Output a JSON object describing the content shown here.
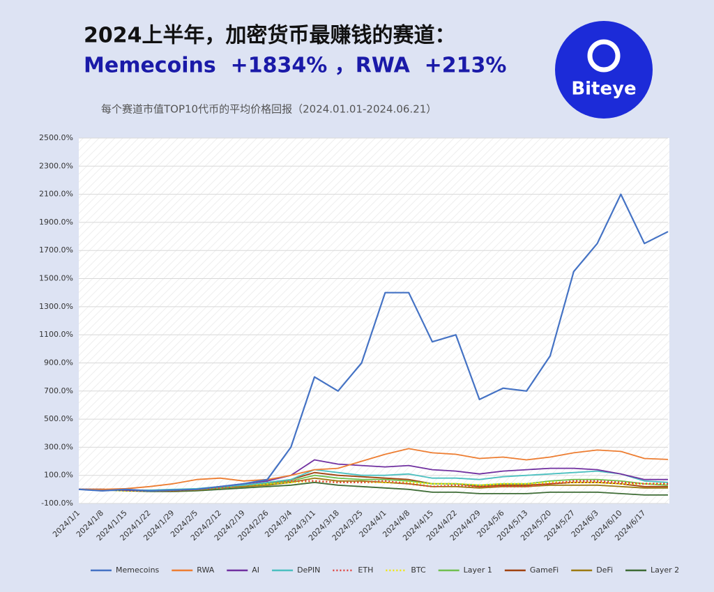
{
  "brand": "Biteye",
  "chart_data": {
    "type": "line",
    "title": "2024上半年，加密货币最赚钱的赛道：",
    "subtitle": "Memecoins  +1834% ，RWA  +213%",
    "note": "每个赛道市值TOP10代币的平均价格回报（2024.01.01-2024.06.21）",
    "categories": [
      "2024/1/1",
      "2024/1/8",
      "2024/1/15",
      "2024/1/22",
      "2024/1/29",
      "2024/2/5",
      "2024/2/12",
      "2024/2/19",
      "2024/2/26",
      "2024/3/4",
      "2024/3/11",
      "2024/3/18",
      "2024/3/25",
      "2024/4/1",
      "2024/4/8",
      "2024/4/15",
      "2024/4/22",
      "2024/4/29",
      "2024/5/6",
      "2024/5/13",
      "2024/5/20",
      "2024/5/27",
      "2024/6/3",
      "2024/6/10",
      "2024/6/17",
      null
    ],
    "ylim": [
      -100,
      2500
    ],
    "yticks": [
      {
        "value": -100,
        "label": "-100.0%"
      },
      {
        "value": 100,
        "label": "100.0%"
      },
      {
        "value": 300,
        "label": "300.0%"
      },
      {
        "value": 500,
        "label": "500.0%"
      },
      {
        "value": 700,
        "label": "700.0%"
      },
      {
        "value": 900,
        "label": "900.0%"
      },
      {
        "value": 1100,
        "label": "1100.0%"
      },
      {
        "value": 1300,
        "label": "1300.0%"
      },
      {
        "value": 1500,
        "label": "1500.0%"
      },
      {
        "value": 1700,
        "label": "1700.0%"
      },
      {
        "value": 1900,
        "label": "1900.0%"
      },
      {
        "value": 2100,
        "label": "2100.0%"
      },
      {
        "value": 2300,
        "label": "2300.0%"
      },
      {
        "value": 2500,
        "label": "2500.0%"
      }
    ],
    "grid": true,
    "legend": "bottom",
    "series": [
      {
        "name": "Memecoins",
        "color": "#4472c4",
        "values": [
          0,
          -10,
          0,
          -10,
          -5,
          0,
          20,
          40,
          70,
          300,
          800,
          700,
          900,
          1400,
          1400,
          1050,
          1100,
          640,
          720,
          700,
          950,
          1550,
          1750,
          2100,
          1750,
          1834
        ]
      },
      {
        "name": "RWA",
        "color": "#ed7d31",
        "values": [
          0,
          0,
          5,
          20,
          40,
          70,
          80,
          60,
          70,
          100,
          140,
          150,
          200,
          250,
          290,
          260,
          250,
          220,
          230,
          210,
          230,
          260,
          280,
          270,
          220,
          213
        ]
      },
      {
        "name": "AI",
        "color": "#7030a0",
        "values": [
          0,
          0,
          -5,
          -10,
          -5,
          0,
          20,
          40,
          60,
          100,
          210,
          180,
          170,
          160,
          170,
          140,
          130,
          110,
          130,
          140,
          150,
          150,
          140,
          110,
          70,
          70
        ]
      },
      {
        "name": "DePIN",
        "color": "#4bc0c0",
        "values": [
          0,
          0,
          -5,
          -5,
          0,
          5,
          20,
          30,
          50,
          70,
          140,
          120,
          100,
          100,
          110,
          80,
          80,
          70,
          90,
          100,
          110,
          120,
          130,
          110,
          60,
          50
        ]
      },
      {
        "name": "ETH",
        "color": "#e0403a",
        "dash": true,
        "values": [
          0,
          0,
          -5,
          -10,
          -5,
          0,
          10,
          30,
          50,
          60,
          60,
          50,
          50,
          60,
          40,
          20,
          30,
          20,
          20,
          20,
          40,
          60,
          60,
          50,
          40,
          40
        ]
      },
      {
        "name": "BTC",
        "color": "#f2e600",
        "dash": true,
        "values": [
          0,
          0,
          -10,
          -10,
          -5,
          0,
          10,
          30,
          40,
          50,
          60,
          50,
          50,
          50,
          50,
          40,
          40,
          30,
          40,
          40,
          50,
          50,
          50,
          40,
          40,
          40
        ]
      },
      {
        "name": "Layer 1",
        "color": "#70c050",
        "values": [
          0,
          0,
          -5,
          -10,
          -5,
          0,
          10,
          30,
          40,
          60,
          100,
          80,
          70,
          70,
          60,
          40,
          40,
          30,
          40,
          40,
          60,
          70,
          70,
          60,
          40,
          30
        ]
      },
      {
        "name": "GameFi",
        "color": "#a0420e",
        "values": [
          0,
          0,
          -5,
          -10,
          -10,
          0,
          20,
          30,
          40,
          70,
          120,
          100,
          90,
          80,
          70,
          40,
          40,
          20,
          30,
          30,
          40,
          50,
          50,
          40,
          20,
          20
        ]
      },
      {
        "name": "DeFi",
        "color": "#9c7a10",
        "values": [
          0,
          0,
          -5,
          -10,
          -10,
          -5,
          10,
          20,
          30,
          50,
          80,
          60,
          60,
          50,
          40,
          20,
          20,
          10,
          20,
          20,
          30,
          30,
          30,
          20,
          10,
          10
        ]
      },
      {
        "name": "Layer 2",
        "color": "#3d6b34",
        "values": [
          0,
          -5,
          -10,
          -15,
          -15,
          -10,
          0,
          10,
          20,
          30,
          50,
          30,
          20,
          10,
          0,
          -20,
          -20,
          -30,
          -30,
          -30,
          -20,
          -20,
          -20,
          -30,
          -40,
          -40
        ]
      }
    ]
  }
}
